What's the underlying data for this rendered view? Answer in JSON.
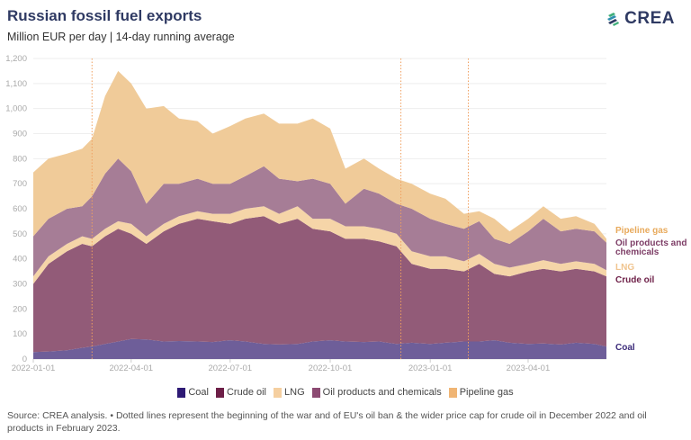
{
  "header": {
    "title": "Russian fossil fuel exports",
    "subtitle": "Million EUR per day | 14-day running average",
    "logo_text": "CREA"
  },
  "footer": {
    "source": "Source: CREA analysis. • Dotted lines represent the beginning of the war and of EU's oil ban & the wider price cap for crude oil in December 2022 and oil products in February 2023."
  },
  "chart_data": {
    "type": "area",
    "stacked": true,
    "title": "Russian fossil fuel exports",
    "subtitle": "Million EUR per day | 14-day running average",
    "xlabel": "",
    "ylabel": "Million EUR per day",
    "ylim": [
      0,
      1200
    ],
    "yticks": [
      0,
      100,
      200,
      300,
      400,
      500,
      600,
      700,
      800,
      900,
      1000,
      1100,
      1200
    ],
    "ytick_labels": [
      "0",
      "100",
      "200",
      "300",
      "400",
      "500",
      "600",
      "700",
      "800",
      "900",
      "1,000",
      "1,100",
      "1,200"
    ],
    "xlim": [
      "2022-01-01",
      "2023-06-12"
    ],
    "xticks": [
      "2022-01-01",
      "2022-04-01",
      "2022-07-01",
      "2022-10-01",
      "2023-01-01",
      "2023-04-01"
    ],
    "grid": true,
    "legend_position": "bottom",
    "event_lines": [
      "2022-02-24",
      "2022-12-05",
      "2023-02-05"
    ],
    "x": [
      "2022-01-01",
      "2022-01-15",
      "2022-02-01",
      "2022-02-15",
      "2022-02-24",
      "2022-03-08",
      "2022-03-20",
      "2022-04-01",
      "2022-04-15",
      "2022-05-01",
      "2022-05-15",
      "2022-06-01",
      "2022-06-15",
      "2022-07-01",
      "2022-07-15",
      "2022-08-01",
      "2022-08-15",
      "2022-09-01",
      "2022-09-15",
      "2022-10-01",
      "2022-10-15",
      "2022-11-01",
      "2022-11-15",
      "2022-12-01",
      "2022-12-15",
      "2023-01-01",
      "2023-01-15",
      "2023-02-01",
      "2023-02-15",
      "2023-03-01",
      "2023-03-15",
      "2023-04-01",
      "2023-04-15",
      "2023-05-01",
      "2023-05-15",
      "2023-06-01",
      "2023-06-12"
    ],
    "series": [
      {
        "name": "Coal",
        "color": "#6e5e99",
        "label_color": "#3b2b7a",
        "values": [
          28,
          30,
          35,
          45,
          50,
          60,
          70,
          80,
          78,
          70,
          72,
          70,
          68,
          75,
          70,
          60,
          58,
          60,
          70,
          75,
          70,
          68,
          70,
          60,
          65,
          60,
          65,
          70,
          70,
          75,
          65,
          60,
          62,
          58,
          65,
          60,
          50
        ]
      },
      {
        "name": "Crude oil",
        "color": "#925b78",
        "label_color": "#6d1f47",
        "values": [
          272,
          350,
          395,
          415,
          400,
          430,
          450,
          420,
          382,
          440,
          468,
          490,
          482,
          465,
          490,
          510,
          482,
          500,
          450,
          435,
          410,
          412,
          400,
          390,
          315,
          300,
          295,
          280,
          310,
          265,
          265,
          290,
          298,
          292,
          295,
          290,
          280
        ]
      },
      {
        "name": "LNG",
        "color": "#f5d5a8",
        "label_color": "#f0c48e",
        "values": [
          30,
          30,
          30,
          30,
          30,
          30,
          30,
          40,
          30,
          30,
          30,
          30,
          30,
          40,
          40,
          40,
          40,
          50,
          40,
          50,
          50,
          50,
          50,
          50,
          50,
          50,
          50,
          40,
          40,
          40,
          35,
          30,
          35,
          30,
          30,
          30,
          25
        ]
      },
      {
        "name": "Oil products and chemicals",
        "color": "#a67d96",
        "label_color": "#7d3d66",
        "values": [
          160,
          150,
          140,
          120,
          170,
          220,
          250,
          210,
          130,
          160,
          130,
          130,
          120,
          120,
          130,
          160,
          140,
          100,
          160,
          140,
          90,
          150,
          140,
          120,
          170,
          150,
          130,
          130,
          130,
          100,
          95,
          130,
          165,
          130,
          130,
          130,
          110
        ]
      },
      {
        "name": "Pipeline gas",
        "color": "#f0cb99",
        "label_color": "#e8aa5c",
        "values": [
          255,
          240,
          220,
          230,
          230,
          310,
          350,
          350,
          380,
          310,
          260,
          230,
          200,
          230,
          230,
          210,
          220,
          230,
          240,
          220,
          140,
          120,
          100,
          100,
          100,
          100,
          100,
          60,
          40,
          80,
          50,
          50,
          50,
          50,
          50,
          30,
          15
        ]
      }
    ]
  }
}
